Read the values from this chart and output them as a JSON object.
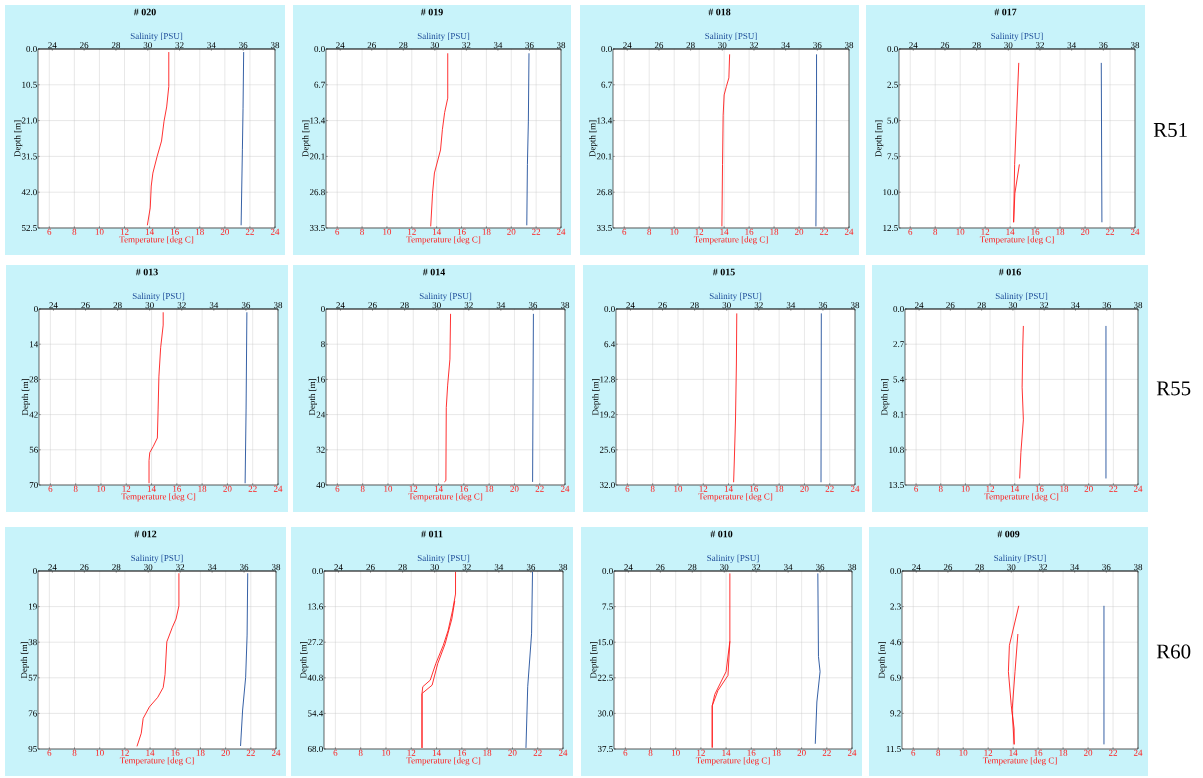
{
  "chart_data": [
    {
      "type": "line",
      "title": "# 020",
      "xlabel": "Temperature [deg C]",
      "x2label": "Salinity [PSU]",
      "ylabel": "Depth [m]",
      "grid": true,
      "xlim": [
        5.1,
        24
      ],
      "xticks": [
        6,
        8,
        10,
        12,
        14,
        16,
        18,
        20,
        22,
        24
      ],
      "x2lim": [
        23.1,
        38
      ],
      "x2ticks": [
        24,
        26,
        28,
        30,
        32,
        34,
        36,
        38
      ],
      "ylim": [
        52.5,
        0
      ],
      "yticks": [
        {
          "value": 0,
          "label": "0.0"
        },
        10.5,
        {
          "value": 21,
          "label": "21.0"
        },
        31.5,
        {
          "value": 42,
          "label": "42.0"
        },
        52.5
      ],
      "series": [
        {
          "color": "#ff1a1a",
          "x": [
            15.53,
            15.53,
            15.36,
            15.15,
            14.95,
            14.6,
            14.26,
            14.13,
            14.05,
            13.82
          ],
          "values": [
            0.9,
            11,
            17,
            21.2,
            27,
            31.5,
            36.4,
            40.2,
            46.6,
            51.7
          ]
        },
        {
          "color": "#1f4e9a",
          "axis": "x2",
          "x": [
            36.03,
            35.99,
            35.95,
            35.87
          ],
          "values": [
            0.9,
            17.5,
            29.4,
            51.7
          ]
        }
      ]
    },
    {
      "type": "line",
      "title": "# 019",
      "xlabel": "Temperature [deg C]",
      "x2label": "Salinity [PSU]",
      "ylabel": "Depth [m]",
      "grid": true,
      "xlim": [
        5.1,
        24
      ],
      "xticks": [
        6,
        8,
        10,
        12,
        14,
        16,
        18,
        20,
        22,
        24
      ],
      "x2lim": [
        23.1,
        38
      ],
      "x2ticks": [
        24,
        26,
        28,
        30,
        32,
        34,
        36,
        38
      ],
      "ylim": [
        33.5,
        0
      ],
      "yticks": [
        {
          "value": 0,
          "label": "0.0"
        },
        6.7,
        13.4,
        20.1,
        26.8,
        33.5
      ],
      "series": [
        {
          "color": "#ff1a1a",
          "x": [
            14.89,
            14.89,
            14.64,
            14.46,
            14.31,
            13.82,
            13.67,
            13.52
          ],
          "values": [
            0.8,
            9.2,
            11.9,
            15.1,
            18.9,
            23.2,
            27,
            33.2
          ]
        },
        {
          "color": "#1f4e9a",
          "axis": "x2",
          "x": [
            35.97,
            35.93,
            35.87,
            35.83
          ],
          "values": [
            0.8,
            13.5,
            21.6,
            33
          ]
        }
      ]
    },
    {
      "type": "line",
      "title": "# 018",
      "xlabel": "Temperature [deg C]",
      "x2label": "Salinity [PSU]",
      "ylabel": "Depth [m]",
      "grid": true,
      "xlim": [
        5.1,
        24
      ],
      "xticks": [
        6,
        8,
        10,
        12,
        14,
        16,
        18,
        20,
        22,
        24
      ],
      "x2lim": [
        23.1,
        38
      ],
      "x2ticks": [
        24,
        26,
        28,
        30,
        32,
        34,
        36,
        38
      ],
      "ylim": [
        33.5,
        0
      ],
      "yticks": [
        {
          "value": 0,
          "label": "0.0"
        },
        6.7,
        13.4,
        20.1,
        26.8,
        33.5
      ],
      "series": [
        {
          "color": "#ff1a1a",
          "x": [
            14.44,
            14.38,
            14.18,
            14,
            13.92,
            13.87,
            13.82
          ],
          "values": [
            1,
            5.4,
            7,
            8.6,
            12.4,
            21.6,
            33.2
          ]
        },
        {
          "color": "#1f4e9a",
          "axis": "x2",
          "x": [
            35.95,
            35.95,
            35.91
          ],
          "values": [
            1,
            8.6,
            33.2
          ]
        }
      ]
    },
    {
      "type": "line",
      "title": "# 017",
      "xlabel": "Temperature [deg C]",
      "x2label": "Salinity [PSU]",
      "ylabel": "Depth [m]",
      "grid": true,
      "xlim": [
        5.1,
        24
      ],
      "xticks": [
        6,
        8,
        10,
        12,
        14,
        16,
        18,
        20,
        22,
        24
      ],
      "x2lim": [
        23.1,
        38
      ],
      "x2ticks": [
        24,
        26,
        28,
        30,
        32,
        34,
        36,
        38
      ],
      "ylim": [
        12.5,
        0
      ],
      "yticks": [
        {
          "value": 0,
          "label": "0.0"
        },
        2.5,
        {
          "value": 5,
          "label": "5.0"
        },
        7.5,
        {
          "value": 10,
          "label": "10.0"
        },
        12.5
      ],
      "annotations": [
        "R51"
      ],
      "series": [
        {
          "color": "#ff1a1a",
          "x": [
            14.69,
            14.5,
            14.36,
            14.28,
            14.38,
            14.74
          ],
          "values": [
            0.97,
            5.04,
            8.06,
            12.1,
            10.08,
            8.06
          ]
        },
        {
          "color": "#1f4e9a",
          "axis": "x2",
          "x": [
            35.87,
            35.91
          ],
          "values": [
            0.97,
            12.1
          ]
        }
      ]
    },
    {
      "type": "line",
      "title": "# 013",
      "xlabel": "Temperature [deg C]",
      "x2label": "Salinity [PSU]",
      "ylabel": "Depth [m]",
      "grid": true,
      "xlim": [
        5.1,
        24
      ],
      "xticks": [
        6,
        8,
        10,
        12,
        14,
        16,
        18,
        20,
        22,
        24
      ],
      "x2lim": [
        23.1,
        38
      ],
      "x2ticks": [
        24,
        26,
        28,
        30,
        32,
        34,
        36,
        38
      ],
      "ylim": [
        70,
        0
      ],
      "yticks": [
        0,
        14,
        28,
        42,
        56,
        70
      ],
      "series": [
        {
          "color": "#ff1a1a",
          "x": [
            14.92,
            14.92,
            14.72,
            14.58,
            14.52,
            14.46,
            14.14,
            13.86,
            13.8,
            13.8
          ],
          "values": [
            1.3,
            6.4,
            15.4,
            27,
            39.8,
            51.3,
            54.6,
            57.1,
            60.3,
            69.3
          ]
        },
        {
          "color": "#1f4e9a",
          "axis": "x2",
          "x": [
            36.06,
            36.01,
            35.95
          ],
          "values": [
            1.3,
            39.8,
            69.3
          ]
        }
      ]
    },
    {
      "type": "line",
      "title": "# 014",
      "xlabel": "Temperature [deg C]",
      "x2label": "Salinity [PSU]",
      "ylabel": "Depth [m]",
      "grid": true,
      "xlim": [
        5.1,
        24
      ],
      "xticks": [
        6,
        8,
        10,
        12,
        14,
        16,
        18,
        20,
        22,
        24
      ],
      "x2lim": [
        23.1,
        38
      ],
      "x2ticks": [
        24,
        26,
        28,
        30,
        32,
        34,
        36,
        38
      ],
      "ylim": [
        40,
        0
      ],
      "yticks": [
        0,
        8,
        16,
        24,
        32,
        40
      ],
      "series": [
        {
          "color": "#ff1a1a",
          "x": [
            14.95,
            14.9,
            14.72,
            14.61,
            14.58,
            14.46
          ],
          "values": [
            1.1,
            11.4,
            17.3,
            22.4,
            39,
            39.3
          ]
        },
        {
          "color": "#1f4e9a",
          "axis": "x2",
          "x": [
            36.03,
            35.98
          ],
          "values": [
            1.1,
            39.3
          ]
        }
      ]
    },
    {
      "type": "line",
      "title": "# 015",
      "xlabel": "Temperature [deg C]",
      "x2label": "Salinity [PSU]",
      "ylabel": "Depth [m]",
      "grid": true,
      "xlim": [
        5.1,
        24
      ],
      "xticks": [
        6,
        8,
        10,
        12,
        14,
        16,
        18,
        20,
        22,
        24
      ],
      "x2lim": [
        23.1,
        38
      ],
      "x2ticks": [
        24,
        26,
        28,
        30,
        32,
        34,
        36,
        38
      ],
      "ylim": [
        32,
        0
      ],
      "yticks": [
        {
          "value": 0,
          "label": "0.0"
        },
        6.4,
        12.8,
        19.2,
        25.6,
        {
          "value": 32,
          "label": "32.0"
        }
      ],
      "series": [
        {
          "color": "#ff1a1a",
          "x": [
            14.65,
            14.62,
            14.55,
            14.45,
            14.4
          ],
          "values": [
            0.8,
            10,
            20,
            28,
            31.5
          ]
        },
        {
          "color": "#1f4e9a",
          "axis": "x2",
          "x": [
            35.9,
            35.88
          ],
          "values": [
            0.8,
            31.5
          ]
        }
      ]
    },
    {
      "type": "line",
      "title": "# 016",
      "xlabel": "Temperature [deg C]",
      "x2label": "Salinity [PSU]",
      "ylabel": "Depth [m]",
      "grid": true,
      "xlim": [
        5.1,
        24
      ],
      "xticks": [
        6,
        8,
        10,
        12,
        14,
        16,
        18,
        20,
        22,
        24
      ],
      "x2lim": [
        23.1,
        38
      ],
      "x2ticks": [
        24,
        26,
        28,
        30,
        32,
        34,
        36,
        38
      ],
      "ylim": [
        13.5,
        0
      ],
      "yticks": [
        {
          "value": 0,
          "label": "0.0"
        },
        2.7,
        5.4,
        8.1,
        10.8,
        13.5
      ],
      "annotations": [
        "R55"
      ],
      "series": [
        {
          "color": "#ff1a1a",
          "x": [
            14.7,
            14.65,
            14.6,
            14.7,
            14.5,
            14.4
          ],
          "values": [
            1.3,
            3,
            6,
            8.5,
            11,
            13
          ]
        },
        {
          "color": "#1f4e9a",
          "axis": "x2",
          "x": [
            35.95,
            35.95
          ],
          "values": [
            1.3,
            13
          ]
        }
      ]
    },
    {
      "type": "line",
      "title": "# 012",
      "xlabel": "Temperature [deg C]",
      "x2label": "Salinity [PSU]",
      "ylabel": "Depth [m]",
      "grid": true,
      "xlim": [
        5.1,
        24
      ],
      "xticks": [
        6,
        8,
        10,
        12,
        14,
        16,
        18,
        20,
        22,
        24
      ],
      "x2lim": [
        23.1,
        38
      ],
      "x2ticks": [
        24,
        26,
        28,
        30,
        32,
        34,
        36,
        38
      ],
      "ylim": [
        95,
        0
      ],
      "yticks": [
        0,
        19,
        38,
        57,
        76,
        95
      ],
      "series": [
        {
          "color": "#ff1a1a",
          "x": [
            16.29,
            16.29,
            16.06,
            15.77,
            15.33,
            15.19,
            15.04,
            14.61,
            13.94,
            13.45,
            13.3,
            12.96
          ],
          "values": [
            1.2,
            18.6,
            25.6,
            30,
            37.8,
            55.2,
            62.2,
            67.4,
            72.6,
            78.7,
            86.6,
            93.6
          ]
        },
        {
          "color": "#1f4e9a",
          "axis": "x2",
          "x": [
            36.23,
            36.19,
            36.1,
            35.91,
            35.78
          ],
          "values": [
            1.2,
            34.2,
            56.8,
            74.2,
            93.4
          ]
        }
      ]
    },
    {
      "type": "line",
      "title": "# 011",
      "xlabel": "Temperature [deg C]",
      "x2label": "Salinity [PSU]",
      "ylabel": "Depth [m]",
      "grid": true,
      "xlim": [
        5.1,
        24
      ],
      "xticks": [
        6,
        8,
        10,
        12,
        14,
        16,
        18,
        20,
        22,
        24
      ],
      "x2lim": [
        23.1,
        38
      ],
      "x2ticks": [
        24,
        26,
        28,
        30,
        32,
        34,
        36,
        38
      ],
      "ylim": [
        68,
        0
      ],
      "yticks": [
        {
          "value": 0,
          "label": "0.0"
        },
        13.6,
        27.2,
        40.8,
        54.4,
        {
          "value": 68,
          "label": "68.0"
        }
      ],
      "series": [
        {
          "color": "#ff1a1a",
          "x": [
            15.5,
            15.5,
            15.26,
            14.91,
            14.53,
            13.94,
            13.5,
            12.91,
            12.85,
            12.85,
            12.85,
            13.65,
            14.09,
            14.68,
            15.21,
            15.44
          ],
          "values": [
            0.3,
            8.8,
            15.2,
            22.8,
            28.4,
            35.4,
            41.7,
            44.2,
            46.8,
            67.6,
            46.8,
            43.6,
            35.4,
            27.8,
            18.3,
            11.4
          ]
        },
        {
          "color": "#1f4e9a",
          "axis": "x2",
          "x": [
            36.1,
            36.04,
            35.8,
            35.69
          ],
          "values": [
            0.3,
            24,
            44.2,
            67.6
          ]
        }
      ]
    },
    {
      "type": "line",
      "title": "# 010",
      "xlabel": "Temperature [deg C]",
      "x2label": "Salinity [PSU]",
      "ylabel": "Depth [m]",
      "grid": true,
      "xlim": [
        5.1,
        24
      ],
      "xticks": [
        6,
        8,
        10,
        12,
        14,
        16,
        18,
        20,
        22,
        24
      ],
      "x2lim": [
        23.1,
        38
      ],
      "x2ticks": [
        24,
        26,
        28,
        30,
        32,
        34,
        36,
        38
      ],
      "ylim": [
        37.5,
        0
      ],
      "yticks": [
        {
          "value": 0,
          "label": "0.0"
        },
        7.5,
        {
          "value": 15,
          "label": "15.0"
        },
        22.5,
        {
          "value": 30,
          "label": "30.0"
        },
        37.5
      ],
      "series": [
        {
          "color": "#ff1a1a",
          "x": [
            14.3,
            14.3,
            14,
            13.1,
            12.9,
            12.9,
            12.9,
            13.35,
            14.15,
            14.3
          ],
          "values": [
            0.5,
            14.8,
            21.2,
            26,
            28.4,
            37.2,
            28.4,
            25.2,
            22,
            14.8
          ]
        },
        {
          "color": "#1f4e9a",
          "axis": "x2",
          "x": [
            35.86,
            35.9,
            36,
            35.8,
            35.7
          ],
          "values": [
            0.5,
            18,
            21.2,
            27.6,
            36.4
          ]
        }
      ]
    },
    {
      "type": "line",
      "title": "# 009",
      "xlabel": "Temperature [deg C]",
      "x2label": "Salinity [PSU]",
      "ylabel": "Depth [m]",
      "grid": true,
      "xlim": [
        5.1,
        24
      ],
      "xticks": [
        6,
        8,
        10,
        12,
        14,
        16,
        18,
        20,
        22,
        24
      ],
      "x2lim": [
        23.1,
        38
      ],
      "x2ticks": [
        24,
        26,
        28,
        30,
        32,
        34,
        36,
        38
      ],
      "ylim": [
        11.5,
        0
      ],
      "yticks": [
        {
          "value": 0,
          "label": "0.0"
        },
        2.3,
        4.6,
        6.9,
        9.2,
        11.5
      ],
      "annotations": [
        "R60"
      ],
      "series": [
        {
          "color": "#ff1a1a",
          "x": [
            14.45,
            13.7,
            13.62,
            13.85,
            14.08,
            14.08,
            13.92,
            14.15,
            14.38
          ],
          "values": [
            2.25,
            4.8,
            6.5,
            8.7,
            10.2,
            11.2,
            9,
            6.5,
            4.07
          ]
        },
        {
          "color": "#1f4e9a",
          "axis": "x2",
          "x": [
            35.85,
            35.85
          ],
          "values": [
            2.25,
            11.2
          ]
        }
      ]
    }
  ]
}
